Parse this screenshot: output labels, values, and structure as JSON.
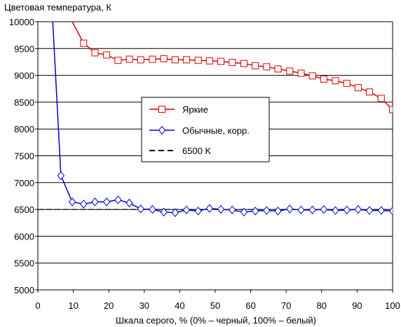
{
  "chart_data": {
    "type": "line",
    "title": "Цветовая температура, К",
    "xlabel": "Шкала серого, % (0% – черный, 100% – белый)",
    "ylabel": "",
    "xlim": [
      0,
      100
    ],
    "ylim": [
      5000,
      10000
    ],
    "x_ticks": [
      0,
      10,
      20,
      30,
      40,
      50,
      60,
      70,
      80,
      90,
      100
    ],
    "y_ticks": [
      5000,
      5500,
      6000,
      6500,
      7000,
      7500,
      8000,
      8500,
      9000,
      9500,
      10000
    ],
    "grid": "horizontal",
    "legend_position": "center",
    "series": [
      {
        "name": "Яркие",
        "color": "#dd0000",
        "marker": "square",
        "line_style": "solid",
        "x": [
          9.7,
          12.9,
          16.1,
          19.4,
          22.6,
          25.8,
          29.0,
          32.3,
          35.5,
          38.7,
          41.9,
          45.2,
          48.4,
          51.6,
          54.8,
          58.1,
          61.3,
          64.5,
          67.7,
          71.0,
          74.2,
          77.4,
          80.6,
          83.9,
          87.1,
          90.3,
          93.5,
          96.8,
          100
        ],
        "values": [
          10000,
          9600,
          9420,
          9380,
          9280,
          9300,
          9290,
          9300,
          9310,
          9290,
          9290,
          9280,
          9270,
          9260,
          9240,
          9220,
          9180,
          9160,
          9120,
          9080,
          9040,
          8990,
          8930,
          8900,
          8850,
          8770,
          8690,
          8570,
          8360
        ]
      },
      {
        "name": "Обычные, корр.",
        "color": "#0000cc",
        "marker": "diamond",
        "line_style": "solid",
        "x": [
          4.2,
          6.5,
          9.7,
          12.9,
          16.1,
          19.4,
          22.6,
          25.8,
          29.0,
          32.3,
          35.5,
          38.7,
          41.9,
          45.2,
          48.4,
          51.6,
          54.8,
          58.1,
          61.3,
          64.5,
          67.7,
          71.0,
          74.2,
          77.4,
          80.6,
          83.9,
          87.1,
          90.3,
          93.5,
          96.8,
          100
        ],
        "values": [
          10000,
          7130,
          6640,
          6600,
          6640,
          6640,
          6680,
          6620,
          6510,
          6500,
          6450,
          6440,
          6490,
          6470,
          6520,
          6500,
          6490,
          6450,
          6470,
          6480,
          6470,
          6510,
          6490,
          6490,
          6500,
          6480,
          6490,
          6500,
          6480,
          6480,
          6470
        ]
      },
      {
        "name": "6500 K",
        "color": "#000000",
        "marker": "none",
        "line_style": "dashed",
        "x": [
          0,
          100
        ],
        "values": [
          6500,
          6500
        ]
      }
    ]
  }
}
